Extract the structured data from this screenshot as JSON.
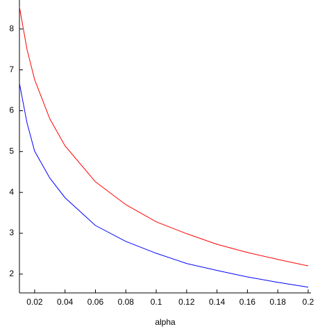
{
  "chart_data": {
    "type": "line",
    "xlabel": "alpha",
    "x": [
      0.01,
      0.015,
      0.02,
      0.03,
      0.04,
      0.06,
      0.08,
      0.1,
      0.12,
      0.14,
      0.16,
      0.18,
      0.2
    ],
    "series": [
      {
        "color": "#ff0000",
        "values": [
          8.54,
          7.5,
          6.76,
          5.8,
          5.14,
          4.26,
          3.7,
          3.28,
          2.99,
          2.73,
          2.53,
          2.36,
          2.2
        ]
      },
      {
        "color": "#0000ff",
        "values": [
          6.67,
          5.7,
          5.01,
          4.35,
          3.87,
          3.19,
          2.8,
          2.51,
          2.26,
          2.09,
          1.93,
          1.8,
          1.68
        ]
      }
    ],
    "xlim": [
      0.01,
      0.2
    ],
    "ylim": [
      1.54,
      8.71
    ],
    "xticks": [
      0.02,
      0.04,
      0.06,
      0.08,
      0.1,
      0.12,
      0.14,
      0.16,
      0.18,
      0.2
    ],
    "yticks": [
      2,
      3,
      4,
      5,
      6,
      7,
      8
    ]
  }
}
